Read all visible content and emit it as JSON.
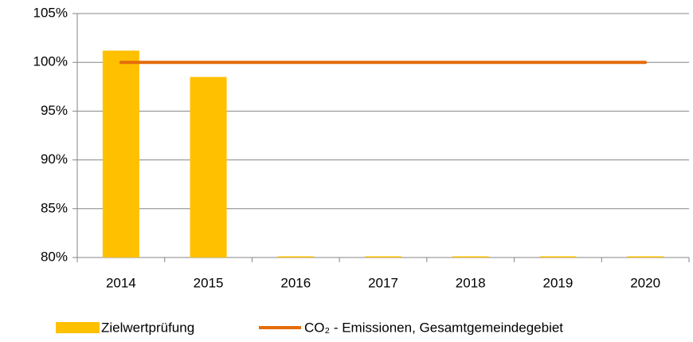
{
  "chart_data": {
    "type": "bar",
    "categories": [
      "2014",
      "2015",
      "2016",
      "2017",
      "2018",
      "2019",
      "2020"
    ],
    "series": [
      {
        "name": "Zielwertprüfung",
        "type": "bar",
        "color": "#ffc000",
        "values": [
          101.2,
          98.5,
          80,
          80,
          80,
          80,
          80
        ]
      },
      {
        "name": "CO₂ - Emissionen, Gesamtgemeindegebiet",
        "type": "line",
        "color": "#e46c0a",
        "values": [
          100,
          100,
          100,
          100,
          100,
          100,
          100
        ]
      }
    ],
    "ylim": [
      80,
      105
    ],
    "yticks": [
      {
        "value": 80,
        "label": "80%"
      },
      {
        "value": 85,
        "label": "85%"
      },
      {
        "value": 90,
        "label": "90%"
      },
      {
        "value": 95,
        "label": "95%"
      },
      {
        "value": 100,
        "label": "100%"
      },
      {
        "value": 105,
        "label": "105%"
      }
    ],
    "grid": true,
    "legend": "bottom"
  }
}
